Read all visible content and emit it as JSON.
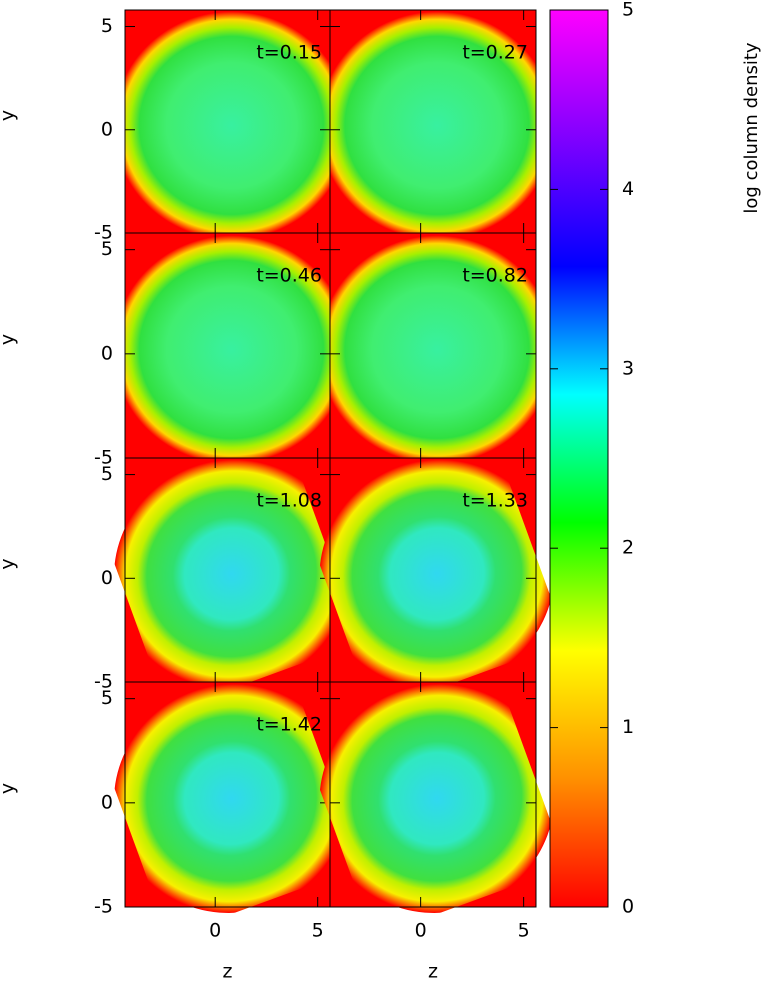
{
  "chart_data": [
    {
      "type": "image",
      "title": "t=0.15",
      "ylabel": "y",
      "xlim": [
        -4.4,
        5.6
      ],
      "ylim": [
        -5,
        5.8
      ],
      "xticks": [
        0,
        5
      ],
      "yticks": [
        -5,
        0,
        5
      ]
    },
    {
      "type": "image",
      "title": "t=0.27",
      "xlim": [
        -4.4,
        5.6
      ],
      "ylim": [
        -5,
        5.8
      ],
      "xticks": [
        0,
        5
      ],
      "yticks": [
        -5,
        0,
        5
      ]
    },
    {
      "type": "image",
      "title": "t=0.46",
      "ylabel": "y",
      "xlim": [
        -4.4,
        5.6
      ],
      "ylim": [
        -5,
        5.8
      ],
      "xticks": [
        0,
        5
      ],
      "yticks": [
        -5,
        0,
        5
      ]
    },
    {
      "type": "image",
      "title": "t=0.82",
      "xlim": [
        -4.4,
        5.6
      ],
      "ylim": [
        -5,
        5.8
      ],
      "xticks": [
        0,
        5
      ],
      "yticks": [
        -5,
        0,
        5
      ]
    },
    {
      "type": "image",
      "title": "t=1.08",
      "ylabel": "y",
      "xlim": [
        -4.4,
        5.6
      ],
      "ylim": [
        -5,
        5.8
      ],
      "xticks": [
        0,
        5
      ],
      "yticks": [
        -5,
        0,
        5
      ]
    },
    {
      "type": "image",
      "title": "t=1.33",
      "xlim": [
        -4.4,
        5.6
      ],
      "ylim": [
        -5,
        5.8
      ],
      "xticks": [
        0,
        5
      ],
      "yticks": [
        -5,
        0,
        5
      ]
    },
    {
      "type": "image",
      "title": "t=1.42",
      "ylabel": "y",
      "xlabel": "z",
      "xlim": [
        -4.4,
        5.6
      ],
      "ylim": [
        -5,
        5.8
      ],
      "xticks": [
        0,
        5
      ],
      "yticks": [
        -5,
        0,
        5
      ]
    },
    {
      "type": "image",
      "xlabel": "z",
      "xlim": [
        -4.4,
        5.6
      ],
      "ylim": [
        -5,
        5.8
      ],
      "xticks": [
        0,
        5
      ],
      "yticks": [
        -5,
        0,
        5
      ]
    },
    {
      "type": "colorbar",
      "label": "log column density",
      "ylim": [
        0,
        5
      ],
      "yticks": [
        0,
        1,
        2,
        3,
        4,
        5
      ],
      "colors": [
        "#ff0000",
        "#ff9000",
        "#ffff00",
        "#00ff00",
        "#00ffff",
        "#0000ff",
        "#8000ff",
        "#ff00ff"
      ]
    }
  ]
}
